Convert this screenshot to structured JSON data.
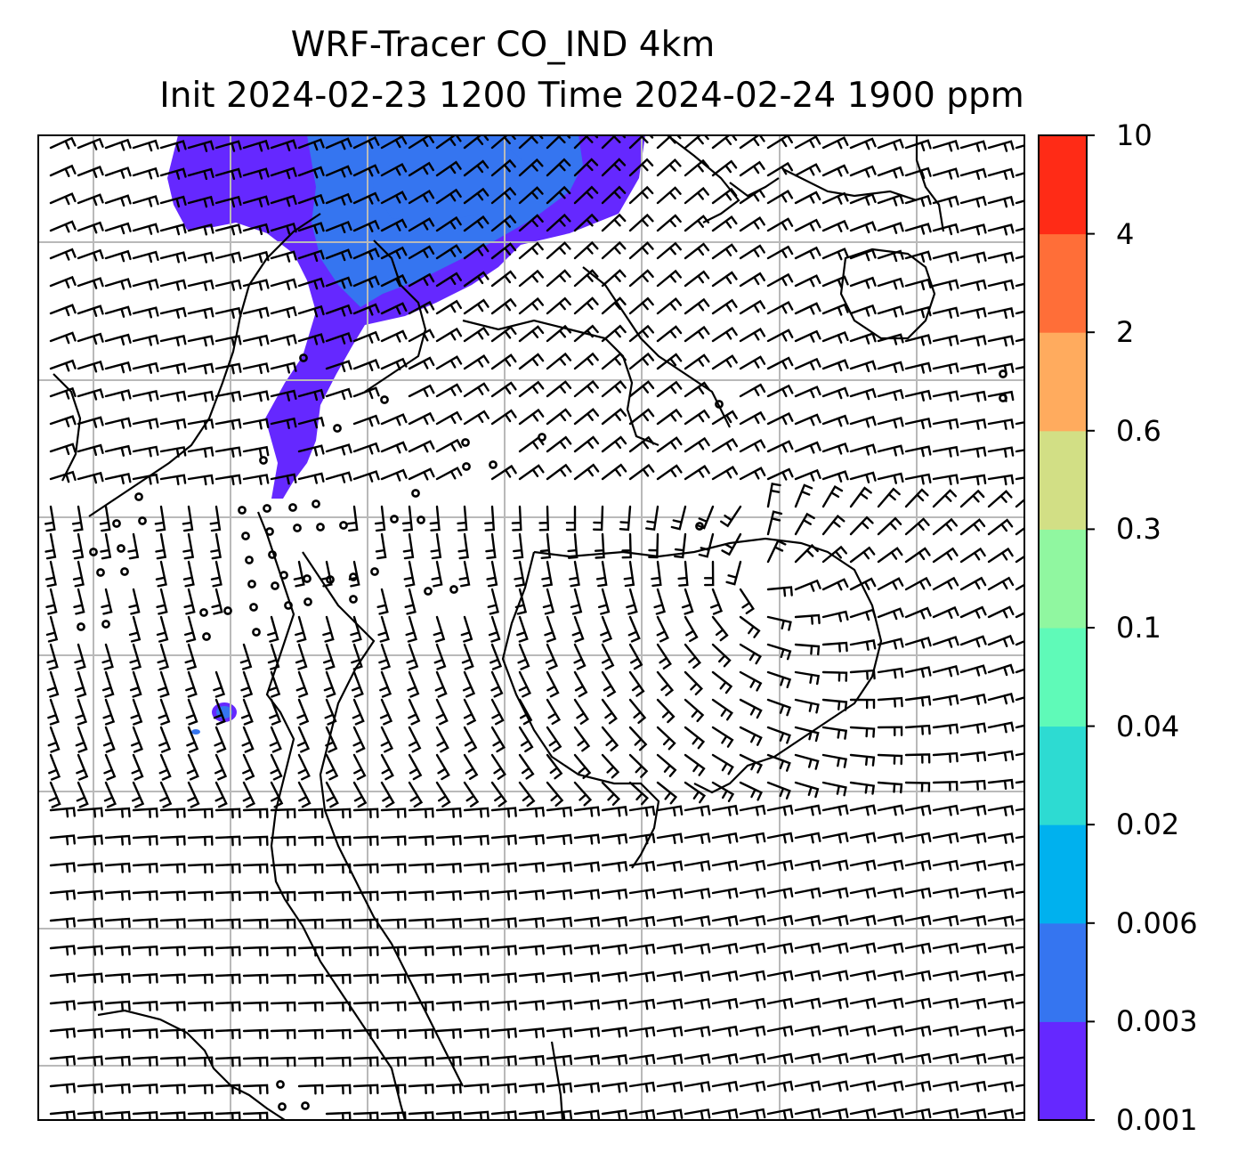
{
  "title": {
    "line1": "WRF-Tracer CO_IND 4km",
    "line2": "Init 2024-02-23 1200 Time 2024-02-24 1900 ppm"
  },
  "colorbar": {
    "levels": [
      {
        "label": "0.001",
        "color": "#6528ff"
      },
      {
        "label": "0.003",
        "color": "#3575f0"
      },
      {
        "label": "0.006",
        "color": "#00b1ee"
      },
      {
        "label": "0.02",
        "color": "#2ddbd2"
      },
      {
        "label": "0.04",
        "color": "#5ffab8"
      },
      {
        "label": "0.1",
        "color": "#90f7a0"
      },
      {
        "label": "0.3",
        "color": "#d2df85"
      },
      {
        "label": "0.6",
        "color": "#ffab5e"
      },
      {
        "label": "2",
        "color": "#ff6e38"
      },
      {
        "label": "4",
        "color": "#ff2b16"
      },
      {
        "label": "10",
        "color": null
      }
    ]
  },
  "map": {
    "gridlines": true,
    "features": [
      "coastlines",
      "country-borders",
      "wind-barbs",
      "tracer-plume"
    ],
    "wind_barbs": "present"
  }
}
